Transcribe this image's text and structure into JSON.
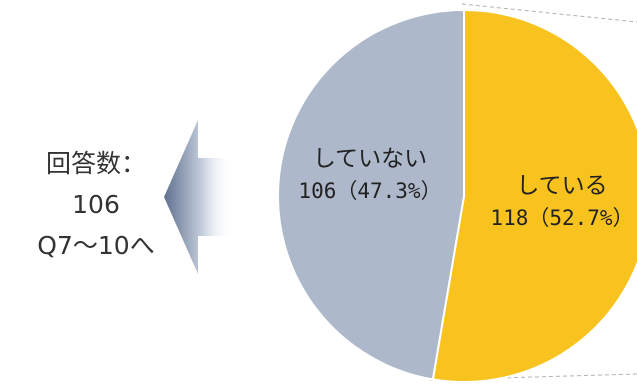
{
  "chart_data": {
    "type": "pie",
    "categories": [
      "している",
      "していない"
    ],
    "values": [
      118,
      106
    ],
    "percent_labels": [
      "118（52.7%）",
      "106（47.3%）"
    ],
    "colors": [
      "#F9C31F",
      "#ADB8CB"
    ]
  },
  "callout": {
    "line1": "回答数：",
    "line2": "106",
    "line3": "Q7～10へ"
  }
}
